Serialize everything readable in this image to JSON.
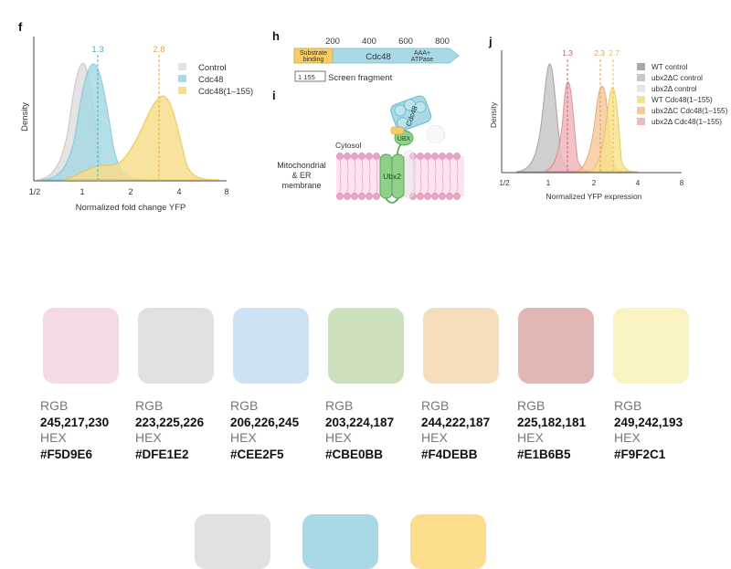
{
  "panels": {
    "f": {
      "letter": "f",
      "ylabel": "Density",
      "xlabel": "Normalized fold change YFP",
      "ticks": [
        "1/2",
        "1",
        "2",
        "4",
        "8"
      ],
      "markers": [
        "1.3",
        "2.8"
      ],
      "legend": [
        "Control",
        "Cdc48",
        "Cdc48(1–155)"
      ]
    },
    "h": {
      "letter": "h",
      "scale": [
        "200",
        "400",
        "600",
        "800"
      ],
      "substrate_line1": "Substrate",
      "substrate_line2": "binding",
      "domain_name": "Cdc48",
      "atpase_line1": "AAA+",
      "atpase_line2": "ATPase",
      "fragment_range": "1   155",
      "fragment_label": "Screen fragment"
    },
    "i": {
      "letter": "i",
      "cdc48": "Cdc48",
      "ubx": "UBX",
      "ubx2": "Ubx2",
      "cytosol": "Cytosol",
      "membrane_line1": "Mitochondrial",
      "membrane_line2": "& ER",
      "membrane_line3": "membrane"
    },
    "j": {
      "letter": "j",
      "ylabel": "Density",
      "xlabel": "Normalized YFP expression",
      "ticks": [
        "1/2",
        "1",
        "2",
        "4",
        "8"
      ],
      "markers": [
        "1.3",
        "2.3",
        "2.7"
      ],
      "legend": [
        "WT control",
        "ubx2ΔC control",
        "ubx2Δ control",
        "WT Cdc48(1–155)",
        "ubx2ΔC Cdc48(1–155)",
        "ubx2Δ Cdc48(1–155)"
      ]
    }
  },
  "palette": [
    {
      "rgb_label": "RGB",
      "rgb": "245,217,230",
      "hex_label": "HEX",
      "hex": "#F5D9E6",
      "color": "#F5D9E6"
    },
    {
      "rgb_label": "RGB",
      "rgb": "223,225,226",
      "hex_label": "HEX",
      "hex": "#DFE1E2",
      "color": "#DFE1E2"
    },
    {
      "rgb_label": "RGB",
      "rgb": "206,226,245",
      "hex_label": "HEX",
      "hex": "#CEE2F5",
      "color": "#CEE2F5"
    },
    {
      "rgb_label": "RGB",
      "rgb": "203,224,187",
      "hex_label": "HEX",
      "hex": "#CBE0BB",
      "color": "#CBE0BB"
    },
    {
      "rgb_label": "RGB",
      "rgb": "244,222,187",
      "hex_label": "HEX",
      "hex": "#F4DEBB",
      "color": "#F4DEBB"
    },
    {
      "rgb_label": "RGB",
      "rgb": "225,182,181",
      "hex_label": "HEX",
      "hex": "#E1B6B5",
      "color": "#E1B6B5"
    },
    {
      "rgb_label": "RGB",
      "rgb": "249,242,193",
      "hex_label": "HEX",
      "hex": "#F9F2C1",
      "color": "#F9F2C1"
    }
  ],
  "palette_bottom": [
    {
      "color": "#DFE1E2"
    },
    {
      "color": "#A9D9E6"
    },
    {
      "color": "#FBDD8C"
    }
  ]
}
